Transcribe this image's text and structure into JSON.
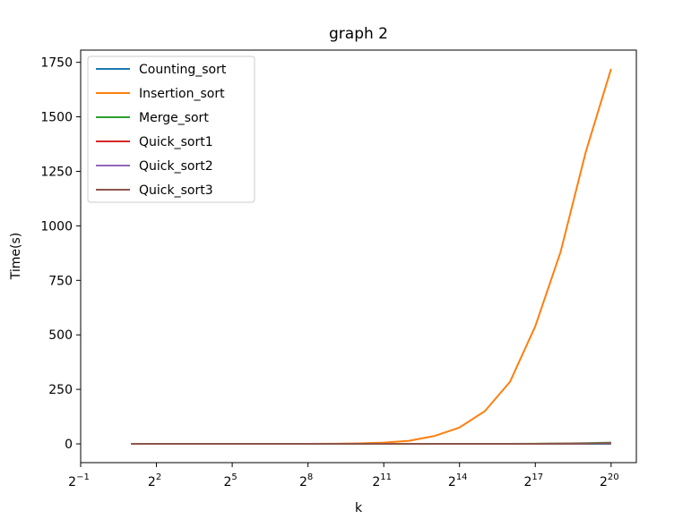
{
  "chart_data": {
    "type": "line",
    "title": "graph 2",
    "xlabel": "k",
    "ylabel": "Time(s)",
    "x_scale": "log2",
    "x_tick_labels": [
      {
        "base": "2",
        "exp": "−1"
      },
      {
        "base": "2",
        "exp": "2"
      },
      {
        "base": "2",
        "exp": "5"
      },
      {
        "base": "2",
        "exp": "8"
      },
      {
        "base": "2",
        "exp": "11"
      },
      {
        "base": "2",
        "exp": "14"
      },
      {
        "base": "2",
        "exp": "17"
      },
      {
        "base": "2",
        "exp": "20"
      }
    ],
    "x_tick_exponents": [
      -1,
      2,
      5,
      8,
      11,
      14,
      17,
      20
    ],
    "y_ticks": [
      0,
      250,
      500,
      750,
      1000,
      1250,
      1500,
      1750
    ],
    "y_tick_labels": [
      "0",
      "250",
      "500",
      "750",
      "1000",
      "1250",
      "1500",
      "1750"
    ],
    "xlim_exp": [
      -1,
      21
    ],
    "ylim": [
      -86,
      1806
    ],
    "grid": false,
    "legend_position": "top-left",
    "x_exponents": [
      1,
      2,
      3,
      4,
      5,
      6,
      7,
      8,
      9,
      10,
      11,
      12,
      13,
      14,
      15,
      16,
      17,
      18,
      19,
      20
    ],
    "series": [
      {
        "name": "Counting_sort",
        "color": "#1f77b4",
        "values": [
          0,
          0,
          0,
          0,
          0,
          0,
          0,
          0,
          0,
          0,
          0,
          0,
          0,
          0,
          0,
          0,
          0.1,
          0.1,
          0.2,
          0.4
        ]
      },
      {
        "name": "Insertion_sort",
        "color": "#ff7f0e",
        "values": [
          0,
          0,
          0,
          0,
          0,
          0,
          0,
          0.1,
          0.5,
          2,
          6,
          14,
          36,
          75,
          150,
          285,
          540,
          880,
          1340,
          1720
        ]
      },
      {
        "name": "Merge_sort",
        "color": "#2ca02c",
        "values": [
          0,
          0,
          0,
          0,
          0,
          0,
          0,
          0,
          0,
          0,
          0,
          0,
          0,
          0.1,
          0.2,
          0.4,
          0.8,
          1.6,
          3,
          6
        ]
      },
      {
        "name": "Quick_sort1",
        "color": "#d62728",
        "values": [
          0,
          0,
          0,
          0,
          0,
          0,
          0,
          0,
          0,
          0,
          0,
          0,
          0,
          0,
          0.1,
          0.2,
          0.4,
          0.8,
          1.6,
          3
        ]
      },
      {
        "name": "Quick_sort2",
        "color": "#9467bd",
        "values": [
          0,
          0,
          0,
          0,
          0,
          0,
          0,
          0,
          0,
          0,
          0,
          0,
          0,
          0,
          0.1,
          0.2,
          0.4,
          0.8,
          1.6,
          3
        ]
      },
      {
        "name": "Quick_sort3",
        "color": "#8c564b",
        "values": [
          0,
          0,
          0,
          0,
          0,
          0,
          0,
          0,
          0,
          0,
          0,
          0,
          0,
          0,
          0.1,
          0.2,
          0.4,
          0.8,
          1.6,
          3
        ]
      }
    ]
  }
}
